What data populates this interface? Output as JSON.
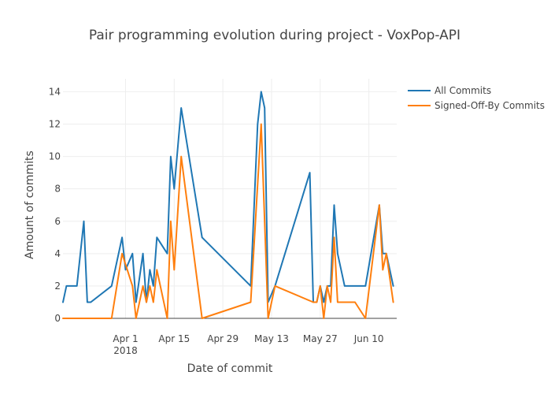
{
  "chart_data": {
    "type": "line",
    "title": "Pair programming evolution during project - VoxPop-API",
    "xlabel": "Date of commit",
    "ylabel": "Amount of commits",
    "x_axis": {
      "type": "date",
      "range": [
        "2018-03-14",
        "2018-06-18"
      ],
      "ticks": [
        {
          "date": "2018-04-01",
          "label": "Apr 1",
          "sublabel": "2018"
        },
        {
          "date": "2018-04-15",
          "label": "Apr 15"
        },
        {
          "date": "2018-04-29",
          "label": "Apr 29"
        },
        {
          "date": "2018-05-13",
          "label": "May 13"
        },
        {
          "date": "2018-05-27",
          "label": "May 27"
        },
        {
          "date": "2018-06-10",
          "label": "Jun 10"
        }
      ]
    },
    "y_axis": {
      "range": [
        0,
        14.8
      ],
      "ticks": [
        0,
        2,
        4,
        6,
        8,
        10,
        12,
        14
      ]
    },
    "grid": true,
    "legend_position": "right",
    "series": [
      {
        "name": "All Commits",
        "color": "#1f77b4",
        "points": [
          [
            "2018-03-14",
            1
          ],
          [
            "2018-03-15",
            2
          ],
          [
            "2018-03-18",
            2
          ],
          [
            "2018-03-20",
            6
          ],
          [
            "2018-03-21",
            1
          ],
          [
            "2018-03-22",
            1
          ],
          [
            "2018-03-28",
            2
          ],
          [
            "2018-03-31",
            5
          ],
          [
            "2018-04-01",
            3
          ],
          [
            "2018-04-03",
            4
          ],
          [
            "2018-04-04",
            1
          ],
          [
            "2018-04-06",
            4
          ],
          [
            "2018-04-07",
            1
          ],
          [
            "2018-04-08",
            3
          ],
          [
            "2018-04-09",
            2
          ],
          [
            "2018-04-10",
            5
          ],
          [
            "2018-04-13",
            4
          ],
          [
            "2018-04-14",
            10
          ],
          [
            "2018-04-15",
            8
          ],
          [
            "2018-04-17",
            13
          ],
          [
            "2018-04-23",
            5
          ],
          [
            "2018-05-07",
            2
          ],
          [
            "2018-05-09",
            12
          ],
          [
            "2018-05-10",
            14
          ],
          [
            "2018-05-11",
            13
          ],
          [
            "2018-05-12",
            1
          ],
          [
            "2018-05-14",
            2
          ],
          [
            "2018-05-24",
            9
          ],
          [
            "2018-05-25",
            1
          ],
          [
            "2018-05-26",
            1
          ],
          [
            "2018-05-27",
            2
          ],
          [
            "2018-05-28",
            1
          ],
          [
            "2018-05-29",
            2
          ],
          [
            "2018-05-30",
            2
          ],
          [
            "2018-05-31",
            7
          ],
          [
            "2018-06-01",
            4
          ],
          [
            "2018-06-03",
            2
          ],
          [
            "2018-06-08",
            2
          ],
          [
            "2018-06-09",
            2
          ],
          [
            "2018-06-13",
            7
          ],
          [
            "2018-06-14",
            4
          ],
          [
            "2018-06-15",
            4
          ],
          [
            "2018-06-17",
            2
          ]
        ]
      },
      {
        "name": "Signed-Off-By Commits",
        "color": "#ff7f0e",
        "points": [
          [
            "2018-03-14",
            0
          ],
          [
            "2018-03-20",
            0
          ],
          [
            "2018-03-28",
            0
          ],
          [
            "2018-03-31",
            4
          ],
          [
            "2018-04-03",
            2
          ],
          [
            "2018-04-04",
            0
          ],
          [
            "2018-04-06",
            2
          ],
          [
            "2018-04-07",
            1
          ],
          [
            "2018-04-08",
            2
          ],
          [
            "2018-04-09",
            1
          ],
          [
            "2018-04-10",
            3
          ],
          [
            "2018-04-13",
            0
          ],
          [
            "2018-04-14",
            6
          ],
          [
            "2018-04-15",
            3
          ],
          [
            "2018-04-17",
            10
          ],
          [
            "2018-04-23",
            0
          ],
          [
            "2018-05-07",
            1
          ],
          [
            "2018-05-10",
            12
          ],
          [
            "2018-05-12",
            0
          ],
          [
            "2018-05-14",
            2
          ],
          [
            "2018-05-25",
            1
          ],
          [
            "2018-05-26",
            1
          ],
          [
            "2018-05-27",
            2
          ],
          [
            "2018-05-28",
            0
          ],
          [
            "2018-05-29",
            2
          ],
          [
            "2018-05-30",
            1
          ],
          [
            "2018-05-31",
            5
          ],
          [
            "2018-06-01",
            1
          ],
          [
            "2018-06-06",
            1
          ],
          [
            "2018-06-09",
            0
          ],
          [
            "2018-06-13",
            7
          ],
          [
            "2018-06-14",
            3
          ],
          [
            "2018-06-15",
            4
          ],
          [
            "2018-06-17",
            1
          ]
        ]
      }
    ]
  }
}
